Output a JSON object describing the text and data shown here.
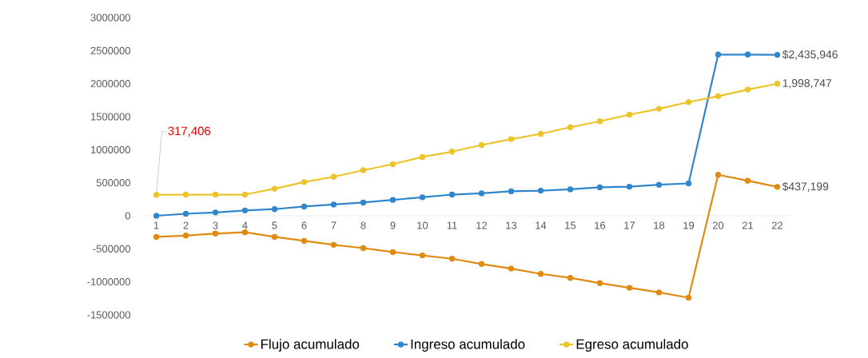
{
  "chart_data": {
    "type": "line",
    "categories": [
      "1",
      "2",
      "3",
      "4",
      "5",
      "6",
      "7",
      "8",
      "9",
      "10",
      "11",
      "12",
      "13",
      "14",
      "15",
      "16",
      "17",
      "18",
      "19",
      "20",
      "21",
      "22"
    ],
    "series": [
      {
        "name": "Flujo acumulado",
        "color": "#e08a12",
        "values": [
          -320000,
          -300000,
          -270000,
          -250000,
          -320000,
          -380000,
          -440000,
          -490000,
          -550000,
          -600000,
          -650000,
          -730000,
          -800000,
          -880000,
          -940000,
          -1020000,
          -1090000,
          -1160000,
          -1240000,
          620000,
          530000,
          437199
        ]
      },
      {
        "name": "Ingreso acumulado",
        "color": "#2f86cd",
        "values": [
          0,
          30000,
          50000,
          80000,
          100000,
          140000,
          170000,
          200000,
          240000,
          280000,
          320000,
          340000,
          370000,
          380000,
          400000,
          430000,
          440000,
          470000,
          490000,
          2440000,
          2440000,
          2435946
        ]
      },
      {
        "name": "Egreso acumulado",
        "color": "#ecc42a",
        "values": [
          317406,
          320000,
          320000,
          320000,
          410000,
          510000,
          590000,
          690000,
          780000,
          890000,
          970000,
          1070000,
          1160000,
          1240000,
          1340000,
          1430000,
          1530000,
          1620000,
          1720000,
          1810000,
          1910000,
          1998747
        ]
      }
    ],
    "ylim": [
      -1500000,
      3000000
    ],
    "yticks": [
      -1500000,
      -1000000,
      -500000,
      0,
      500000,
      1000000,
      1500000,
      2000000,
      2500000,
      3000000
    ],
    "annotations": [
      {
        "text": "317,406",
        "x": "1",
        "y": 317406
      },
      {
        "text": "$2,435,946",
        "x": "22",
        "y": 2435946
      },
      {
        "text": "1,998,747",
        "x": "22",
        "y": 1998747
      },
      {
        "text": "$437,199",
        "x": "22",
        "y": 437199
      }
    ],
    "legend": "bottom",
    "marker": "circle",
    "line_style": "solid",
    "grid": false
  }
}
